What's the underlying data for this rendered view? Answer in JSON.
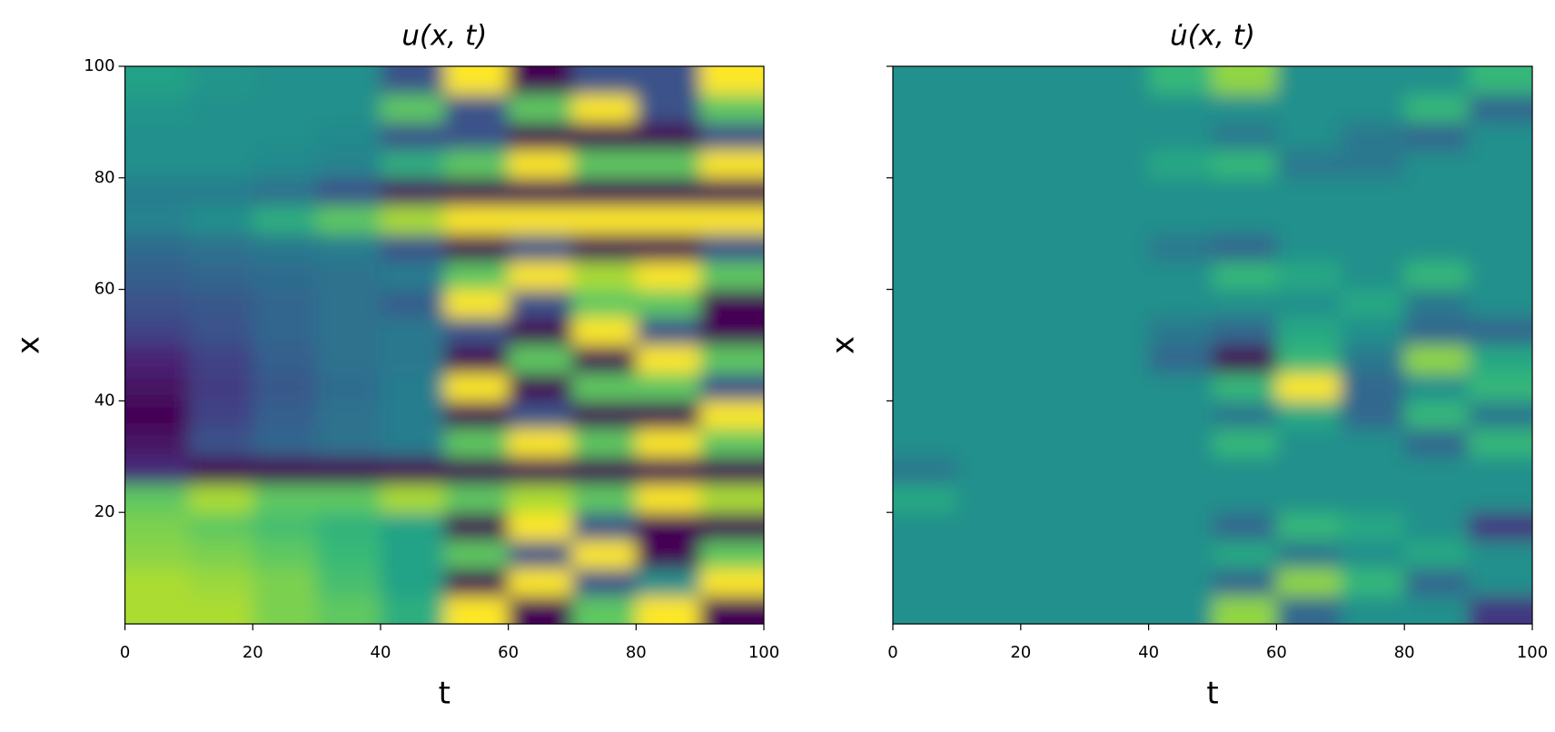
{
  "chart_data": [
    {
      "type": "heatmap",
      "title": "u(x, t)",
      "xlabel": "t",
      "ylabel": "x",
      "colormap": "viridis",
      "x": [
        5,
        15,
        25,
        35,
        45,
        55,
        65,
        75,
        85,
        95
      ],
      "y": [
        2.5,
        7.5,
        12.5,
        17.5,
        22.5,
        27.5,
        32.5,
        37.5,
        42.5,
        47.5,
        52.5,
        57.5,
        62.5,
        67.5,
        72.5,
        77.5,
        82.5,
        87.5,
        92.5,
        97.5
      ],
      "z": [
        [
          1.5,
          1.5,
          1.2,
          1,
          0.5,
          2,
          -2,
          1,
          2,
          -2
        ],
        [
          1.5,
          1.4,
          1.2,
          0.8,
          0.3,
          -2,
          2,
          -1,
          0,
          2
        ],
        [
          1.3,
          1.2,
          1,
          0.7,
          0.3,
          1,
          -1,
          2,
          -2,
          1
        ],
        [
          1.2,
          1,
          0.8,
          0.6,
          0.3,
          -2,
          2,
          -1,
          -2,
          -2
        ],
        [
          1,
          1.5,
          1,
          1,
          1.5,
          1,
          1.5,
          1,
          2,
          1.5
        ],
        [
          -1.5,
          -2,
          -2,
          -2,
          -2,
          -2,
          -2,
          -2,
          -2,
          -2
        ],
        [
          -1.8,
          -1,
          -0.7,
          -0.5,
          -0.3,
          1,
          2,
          1,
          2,
          1
        ],
        [
          -2,
          -1.2,
          -0.8,
          -0.5,
          -0.3,
          -2,
          -1,
          -2,
          -2,
          2
        ],
        [
          -1.8,
          -1.3,
          -0.9,
          -0.6,
          -0.3,
          2,
          -2,
          1,
          1,
          -1
        ],
        [
          -1.6,
          -1.2,
          -0.8,
          -0.5,
          -0.4,
          -2,
          1,
          -2,
          2,
          1
        ],
        [
          -1.2,
          -1,
          -0.7,
          -0.5,
          -0.4,
          -1,
          -2,
          2,
          -1,
          -2
        ],
        [
          -1,
          -0.9,
          -0.7,
          -0.5,
          -0.8,
          2,
          -1,
          1,
          1,
          -2
        ],
        [
          -0.8,
          -0.7,
          -0.6,
          -0.5,
          -0.3,
          1,
          2,
          1.5,
          2,
          1
        ],
        [
          -0.6,
          -0.5,
          -0.4,
          -0.3,
          -1,
          -2,
          -1,
          -2,
          -2,
          -1
        ],
        [
          -0.2,
          0,
          0.5,
          1,
          1.5,
          2,
          2,
          2,
          2,
          2
        ],
        [
          -0.3,
          -0.3,
          -0.5,
          -1,
          -1.8,
          -2,
          -2,
          -2,
          -2,
          -2
        ],
        [
          0,
          0,
          -0.1,
          -0.2,
          0.5,
          1,
          2,
          1,
          1,
          2
        ],
        [
          0,
          0,
          0,
          -0.1,
          -1,
          -1,
          -2,
          -2,
          -2,
          -1
        ],
        [
          0.1,
          0,
          0,
          0,
          1,
          -1,
          1,
          2,
          -1,
          1
        ],
        [
          0.3,
          0.1,
          0,
          0,
          -1,
          2,
          -2,
          -1,
          -1,
          2
        ]
      ],
      "zlim": [
        -2,
        2
      ],
      "xlim": [
        0,
        100
      ],
      "ylim": [
        0,
        100
      ],
      "xticks": [
        0,
        20,
        40,
        60,
        80,
        100
      ],
      "yticks": [
        20,
        40,
        60,
        80,
        100
      ]
    },
    {
      "type": "heatmap",
      "title": "u̇(x, t)",
      "xlabel": "t",
      "ylabel": "x",
      "colormap": "viridis",
      "x": [
        5,
        15,
        25,
        35,
        45,
        55,
        65,
        75,
        85,
        95
      ],
      "y": [
        2.5,
        7.5,
        12.5,
        17.5,
        22.5,
        27.5,
        32.5,
        37.5,
        42.5,
        47.5,
        52.5,
        57.5,
        62.5,
        67.5,
        72.5,
        77.5,
        82.5,
        87.5,
        92.5,
        97.5
      ],
      "z": [
        [
          0,
          0,
          0,
          0,
          0,
          1,
          -0.5,
          0,
          0,
          -1
        ],
        [
          0,
          0,
          0,
          0,
          0,
          -0.5,
          1,
          0.5,
          -0.5,
          0
        ],
        [
          0,
          0,
          0,
          0,
          0,
          0.3,
          -0.3,
          0,
          0.3,
          0
        ],
        [
          0,
          0,
          0,
          0,
          0,
          -0.5,
          0.5,
          0.3,
          0,
          -1
        ],
        [
          0.3,
          0,
          0,
          0,
          0,
          0,
          0,
          0,
          0,
          0
        ],
        [
          -0.3,
          0,
          0,
          0,
          0,
          0,
          0,
          0,
          0,
          0
        ],
        [
          0,
          0,
          0,
          0,
          0,
          0.5,
          0,
          0,
          -0.5,
          0.5
        ],
        [
          0,
          0,
          0,
          0,
          0,
          -0.3,
          0.3,
          -0.5,
          0.5,
          -0.3
        ],
        [
          0,
          0,
          0,
          0,
          0,
          0.5,
          1.5,
          -0.5,
          0,
          0.5
        ],
        [
          0,
          0,
          0,
          0,
          -0.5,
          -1.5,
          0.5,
          -0.3,
          1,
          0.3
        ],
        [
          0,
          0,
          0,
          0,
          -0.3,
          -0.5,
          0.3,
          0,
          -0.5,
          -0.5
        ],
        [
          0,
          0,
          0,
          0,
          0,
          0,
          0,
          0.3,
          -0.3,
          0
        ],
        [
          0,
          0,
          0,
          0,
          0,
          0.5,
          0.3,
          0,
          0.5,
          0
        ],
        [
          0,
          0,
          0,
          0,
          -0.3,
          -0.5,
          0,
          0,
          0,
          0
        ],
        [
          0,
          0,
          0,
          0,
          0,
          0,
          0,
          0,
          0,
          0
        ],
        [
          0,
          0,
          0,
          0,
          0,
          0,
          0,
          0,
          0,
          0
        ],
        [
          0,
          0,
          0,
          0,
          0.3,
          0.5,
          -0.3,
          -0.3,
          0,
          0
        ],
        [
          0,
          0,
          0,
          0,
          0,
          -0.3,
          0,
          -0.3,
          -0.5,
          0
        ],
        [
          0,
          0,
          0,
          0,
          0,
          0,
          0,
          0,
          0.5,
          -0.5
        ],
        [
          0,
          0,
          0,
          0,
          0.5,
          1,
          0,
          0,
          0,
          0.5
        ]
      ],
      "zlim": [
        -1.5,
        1.5
      ],
      "xlim": [
        0,
        100
      ],
      "ylim": [
        0,
        100
      ],
      "xticks": [
        0,
        20,
        40,
        60,
        80,
        100
      ],
      "yticks": [
        20,
        40,
        60,
        80,
        100
      ]
    }
  ]
}
